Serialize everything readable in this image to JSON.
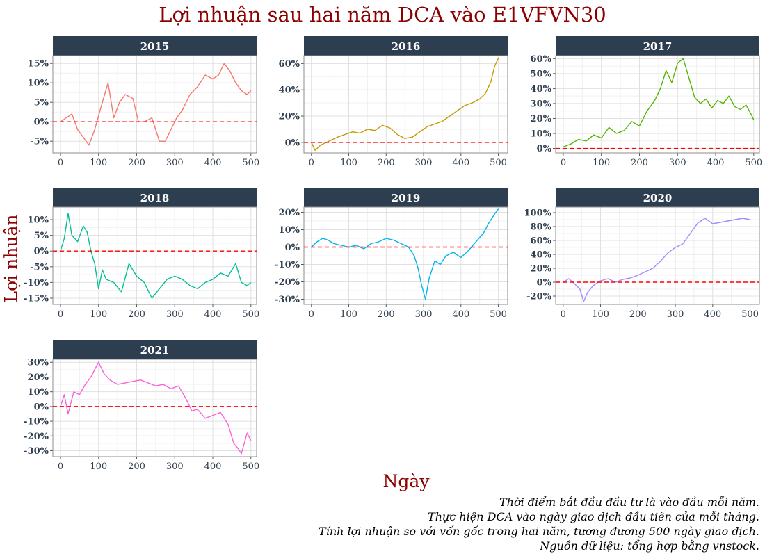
{
  "title": "Lợi nhuận sau hai năm DCA vào E1VFVN30",
  "ylabel": "Lợi nhuận",
  "xlabel": "Ngày",
  "caption": [
    "Thời điểm bắt đầu đầu tư là vào đầu mỗi năm.",
    "Thực hiện DCA vào ngày giao dịch đầu tiên của mỗi tháng.",
    "Tính lợi nhuận so với vốn gốc trong hai năm, tương đương 500 ngày giao dịch.",
    "Nguồn dữ liệu: tổng hợp bằng vnstock."
  ],
  "colors": {
    "strip": "#2c3e50",
    "reference_line": "#ff0000",
    "title": "#8b0000"
  },
  "chart_data": [
    {
      "type": "line",
      "title": "2015",
      "color": "#f8766d",
      "xlim": [
        -20,
        515
      ],
      "ylim": [
        -8,
        17
      ],
      "xticks": [
        0,
        100,
        200,
        300,
        400,
        500
      ],
      "yticks": [
        -5,
        0,
        5,
        10,
        15
      ],
      "ytick_labels": [
        "-5%",
        "0%",
        "5%",
        "10%",
        "15%"
      ],
      "reference_y": 0,
      "x": [
        0,
        15,
        30,
        45,
        60,
        75,
        90,
        110,
        125,
        140,
        155,
        170,
        190,
        205,
        220,
        240,
        260,
        275,
        290,
        305,
        320,
        340,
        360,
        380,
        400,
        415,
        430,
        445,
        460,
        475,
        490,
        500
      ],
      "y": [
        0,
        1,
        2,
        -2,
        -4,
        -6,
        -2,
        5,
        10,
        1,
        5,
        7,
        6,
        0,
        0,
        1,
        -5,
        -5,
        -2,
        1,
        3,
        7,
        9,
        12,
        11,
        12,
        15,
        13,
        10,
        8,
        7,
        8
      ]
    },
    {
      "type": "line",
      "title": "2016",
      "color": "#c49a00",
      "xlim": [
        -20,
        525
      ],
      "ylim": [
        -8,
        66
      ],
      "xticks": [
        0,
        100,
        200,
        300,
        400,
        500
      ],
      "yticks": [
        0,
        20,
        40,
        60
      ],
      "ytick_labels": [
        "0%",
        "20%",
        "40%",
        "60%"
      ],
      "reference_y": 0,
      "x": [
        0,
        10,
        25,
        40,
        55,
        70,
        90,
        110,
        130,
        150,
        170,
        190,
        210,
        230,
        250,
        270,
        290,
        310,
        330,
        350,
        370,
        390,
        410,
        430,
        450,
        465,
        480,
        490,
        500
      ],
      "y": [
        0,
        -6,
        -2,
        0,
        2,
        4,
        6,
        8,
        7,
        10,
        9,
        13,
        11,
        6,
        3,
        4,
        8,
        12,
        14,
        16,
        20,
        24,
        28,
        30,
        33,
        37,
        46,
        58,
        64
      ]
    },
    {
      "type": "line",
      "title": "2017",
      "color": "#53b400",
      "xlim": [
        -20,
        515
      ],
      "ylim": [
        -3,
        62
      ],
      "xticks": [
        0,
        100,
        200,
        300,
        400,
        500
      ],
      "yticks": [
        0,
        10,
        20,
        30,
        40,
        50,
        60
      ],
      "ytick_labels": [
        "0%",
        "10%",
        "20%",
        "30%",
        "40%",
        "50%",
        "60%"
      ],
      "reference_y": 0,
      "x": [
        0,
        20,
        40,
        60,
        80,
        100,
        120,
        140,
        160,
        180,
        200,
        220,
        240,
        255,
        270,
        285,
        300,
        315,
        330,
        345,
        360,
        375,
        390,
        405,
        420,
        435,
        450,
        465,
        480,
        495,
        500
      ],
      "y": [
        1,
        3,
        6,
        5,
        9,
        7,
        14,
        10,
        12,
        18,
        15,
        25,
        32,
        40,
        52,
        44,
        57,
        60,
        47,
        34,
        30,
        33,
        27,
        32,
        30,
        35,
        28,
        26,
        29,
        22,
        19
      ]
    },
    {
      "type": "line",
      "title": "2018",
      "color": "#00c094",
      "xlim": [
        -20,
        515
      ],
      "ylim": [
        -17,
        14
      ],
      "xticks": [
        0,
        100,
        200,
        300,
        400,
        500
      ],
      "yticks": [
        -15,
        -10,
        -5,
        0,
        5,
        10
      ],
      "ytick_labels": [
        "-15%",
        "-10%",
        "-5%",
        "0%",
        "5%",
        "10%"
      ],
      "reference_y": 0,
      "x": [
        0,
        10,
        20,
        30,
        45,
        60,
        70,
        80,
        90,
        100,
        110,
        120,
        140,
        160,
        180,
        200,
        220,
        240,
        260,
        280,
        300,
        320,
        340,
        360,
        380,
        400,
        420,
        440,
        460,
        475,
        490,
        500
      ],
      "y": [
        0,
        4,
        12,
        5,
        3,
        8,
        6,
        0,
        -4,
        -12,
        -6,
        -9,
        -10,
        -13,
        -4,
        -8,
        -10,
        -15,
        -12,
        -9,
        -8,
        -9,
        -11,
        -12,
        -10,
        -9,
        -7,
        -8,
        -4,
        -10,
        -11,
        -10
      ]
    },
    {
      "type": "line",
      "title": "2019",
      "color": "#00b6eb",
      "xlim": [
        -20,
        525
      ],
      "ylim": [
        -33,
        23
      ],
      "xticks": [
        0,
        100,
        200,
        300,
        400,
        500
      ],
      "yticks": [
        -30,
        -20,
        -10,
        0,
        10,
        20
      ],
      "ytick_labels": [
        "-30%",
        "-20%",
        "-10%",
        "0%",
        "10%",
        "20%"
      ],
      "reference_y": 0,
      "x": [
        0,
        15,
        30,
        45,
        60,
        80,
        100,
        120,
        140,
        160,
        180,
        200,
        220,
        240,
        260,
        275,
        285,
        295,
        305,
        315,
        330,
        345,
        360,
        380,
        400,
        420,
        440,
        460,
        475,
        490,
        500
      ],
      "y": [
        0,
        3,
        5,
        4,
        2,
        1,
        0,
        1,
        -1,
        2,
        3,
        5,
        4,
        2,
        0,
        -5,
        -12,
        -22,
        -30,
        -18,
        -8,
        -10,
        -5,
        -3,
        -6,
        -2,
        3,
        8,
        14,
        19,
        22
      ]
    },
    {
      "type": "line",
      "title": "2020",
      "color": "#a58aff",
      "xlim": [
        -20,
        525
      ],
      "ylim": [
        -32,
        108
      ],
      "xticks": [
        0,
        100,
        200,
        300,
        400,
        500
      ],
      "yticks": [
        -20,
        0,
        20,
        40,
        60,
        80,
        100
      ],
      "ytick_labels": [
        "-20%",
        "0%",
        "20%",
        "40%",
        "60%",
        "80%",
        "100%"
      ],
      "reference_y": 0,
      "x": [
        0,
        15,
        30,
        45,
        55,
        65,
        80,
        100,
        120,
        140,
        160,
        180,
        200,
        220,
        240,
        260,
        280,
        300,
        320,
        340,
        360,
        380,
        400,
        420,
        440,
        460,
        480,
        500
      ],
      "y": [
        0,
        5,
        -2,
        -10,
        -28,
        -15,
        -5,
        2,
        5,
        0,
        4,
        6,
        10,
        15,
        20,
        30,
        42,
        50,
        55,
        70,
        85,
        92,
        84,
        86,
        88,
        90,
        92,
        90
      ]
    },
    {
      "type": "line",
      "title": "2021",
      "color": "#fb61d7",
      "xlim": [
        -20,
        515
      ],
      "ylim": [
        -34,
        32
      ],
      "xticks": [
        0,
        100,
        200,
        300,
        400,
        500
      ],
      "yticks": [
        -30,
        -20,
        -10,
        0,
        10,
        20,
        30
      ],
      "ytick_labels": [
        "-30%",
        "-20%",
        "-10%",
        "0%",
        "10%",
        "20%",
        "30%"
      ],
      "reference_y": 0,
      "x": [
        0,
        10,
        20,
        35,
        50,
        65,
        80,
        90,
        100,
        115,
        130,
        150,
        170,
        190,
        210,
        230,
        250,
        270,
        290,
        310,
        330,
        345,
        360,
        380,
        400,
        420,
        440,
        455,
        465,
        475,
        490,
        500
      ],
      "y": [
        0,
        8,
        -5,
        10,
        8,
        15,
        20,
        25,
        30,
        22,
        18,
        15,
        16,
        17,
        18,
        16,
        14,
        15,
        12,
        14,
        5,
        -3,
        -2,
        -8,
        -6,
        -4,
        -12,
        -25,
        -28,
        -32,
        -18,
        -23
      ]
    }
  ]
}
